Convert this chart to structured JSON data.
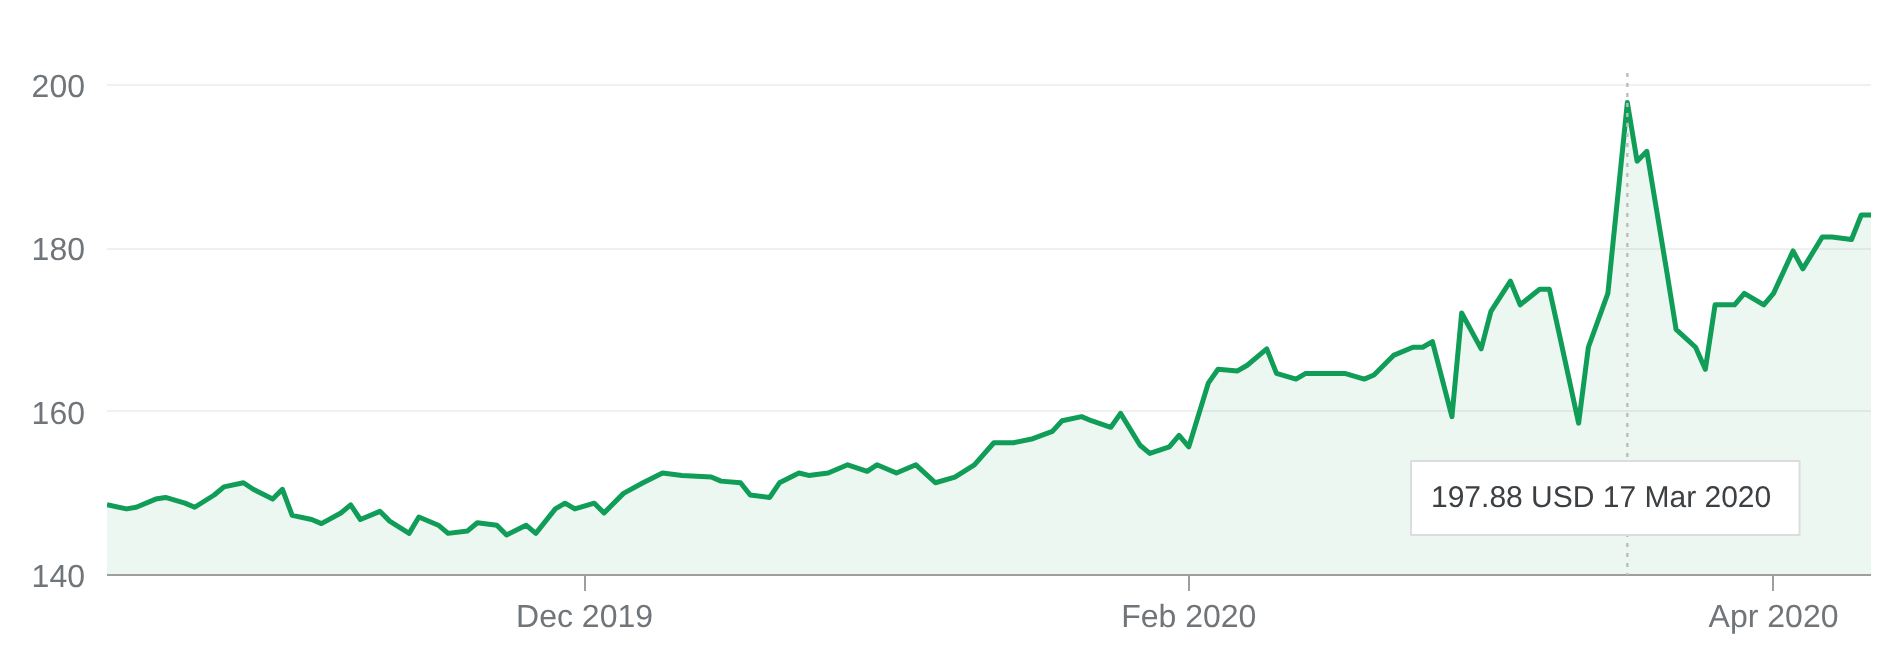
{
  "chart_data": {
    "type": "area",
    "x": [
      "2019-10-13",
      "2019-10-15",
      "2019-10-16",
      "2019-10-18",
      "2019-10-19",
      "2019-10-21",
      "2019-10-22",
      "2019-10-24",
      "2019-10-25",
      "2019-10-27",
      "2019-10-28",
      "2019-10-30",
      "2019-10-31",
      "2019-11-01",
      "2019-11-03",
      "2019-11-04",
      "2019-11-06",
      "2019-11-07",
      "2019-11-08",
      "2019-11-10",
      "2019-11-11",
      "2019-11-13",
      "2019-11-14",
      "2019-11-16",
      "2019-11-17",
      "2019-11-19",
      "2019-11-20",
      "2019-11-22",
      "2019-11-23",
      "2019-11-25",
      "2019-11-26",
      "2019-11-28",
      "2019-11-29",
      "2019-11-30",
      "2019-12-02",
      "2019-12-03",
      "2019-12-05",
      "2019-12-07",
      "2019-12-09",
      "2019-12-11",
      "2019-12-14",
      "2019-12-15",
      "2019-12-17",
      "2019-12-18",
      "2019-12-20",
      "2019-12-21",
      "2019-12-23",
      "2019-12-24",
      "2019-12-26",
      "2019-12-28",
      "2019-12-30",
      "2019-12-31",
      "2020-01-02",
      "2020-01-04",
      "2020-01-06",
      "2020-01-08",
      "2020-01-10",
      "2020-01-12",
      "2020-01-14",
      "2020-01-16",
      "2020-01-18",
      "2020-01-19",
      "2020-01-21",
      "2020-01-22",
      "2020-01-24",
      "2020-01-25",
      "2020-01-27",
      "2020-01-28",
      "2020-01-30",
      "2020-01-31",
      "2020-02-01",
      "2020-02-03",
      "2020-02-04",
      "2020-02-06",
      "2020-02-07",
      "2020-02-09",
      "2020-02-10",
      "2020-02-12",
      "2020-02-13",
      "2020-02-15",
      "2020-02-17",
      "2020-02-19",
      "2020-02-20",
      "2020-02-22",
      "2020-02-24",
      "2020-02-25",
      "2020-02-26",
      "2020-02-28",
      "2020-02-29",
      "2020-03-02",
      "2020-03-03",
      "2020-03-05",
      "2020-03-06",
      "2020-03-08",
      "2020-03-09",
      "2020-03-10",
      "2020-03-12",
      "2020-03-13",
      "2020-03-15",
      "2020-03-17",
      "2020-03-18",
      "2020-03-19",
      "2020-03-21",
      "2020-03-22",
      "2020-03-24",
      "2020-03-25",
      "2020-03-26",
      "2020-03-28",
      "2020-03-29",
      "2020-03-31",
      "2020-04-01",
      "2020-04-03",
      "2020-04-04",
      "2020-04-06",
      "2020-04-07",
      "2020-04-09",
      "2020-04-10",
      "2020-04-11"
    ],
    "series": [
      {
        "color": "#0f9d58",
        "values": [
          148.6,
          148.1,
          148.3,
          149.3,
          149.5,
          148.8,
          148.3,
          149.8,
          150.8,
          151.3,
          150.5,
          149.3,
          150.5,
          147.3,
          146.8,
          146.3,
          147.6,
          148.6,
          146.8,
          147.8,
          146.6,
          145.1,
          147.1,
          146.1,
          145.1,
          145.4,
          146.4,
          146.1,
          144.9,
          146.1,
          145.1,
          148.1,
          148.8,
          148.1,
          148.8,
          147.6,
          150.0,
          151.3,
          152.5,
          152.2,
          152.0,
          151.5,
          151.3,
          149.8,
          149.5,
          151.3,
          152.5,
          152.2,
          152.5,
          153.5,
          152.7,
          153.5,
          152.5,
          153.5,
          151.3,
          152.0,
          153.5,
          156.2,
          156.2,
          156.7,
          157.6,
          158.9,
          159.4,
          158.9,
          158.1,
          159.8,
          155.9,
          154.9,
          155.7,
          157.1,
          155.7,
          163.5,
          165.2,
          165.0,
          165.7,
          167.7,
          164.7,
          164.0,
          164.7,
          164.7,
          164.7,
          164.0,
          164.5,
          166.9,
          167.9,
          167.9,
          168.6,
          159.4,
          172.1,
          167.7,
          172.3,
          176.0,
          173.1,
          175.0,
          175.0,
          169.6,
          158.6,
          167.9,
          174.5,
          197.88,
          190.7,
          191.9,
          177.5,
          170.1,
          167.9,
          165.2,
          173.1,
          173.1,
          174.5,
          173.1,
          174.5,
          179.7,
          177.5,
          181.4,
          181.4,
          181.1,
          184.1,
          184.1
        ]
      }
    ],
    "xlim": [
      "2019-10-13",
      "2020-04-11"
    ],
    "xticks": [
      {
        "value": "2019-12-01",
        "label": "Dec 2019"
      },
      {
        "value": "2020-02-01",
        "label": "Feb 2020"
      },
      {
        "value": "2020-04-01",
        "label": "Apr 2020"
      }
    ],
    "ylim": [
      140,
      201.5
    ],
    "yticks": [
      140,
      160,
      180,
      200
    ],
    "grid": "y",
    "ref_lines": [
      {
        "axis": "x",
        "value": "2020-03-17",
        "color": "#bdbdbd",
        "line_style": "dotted"
      }
    ],
    "annotations": [
      "197.88 USD  17 Mar 2020"
    ]
  }
}
